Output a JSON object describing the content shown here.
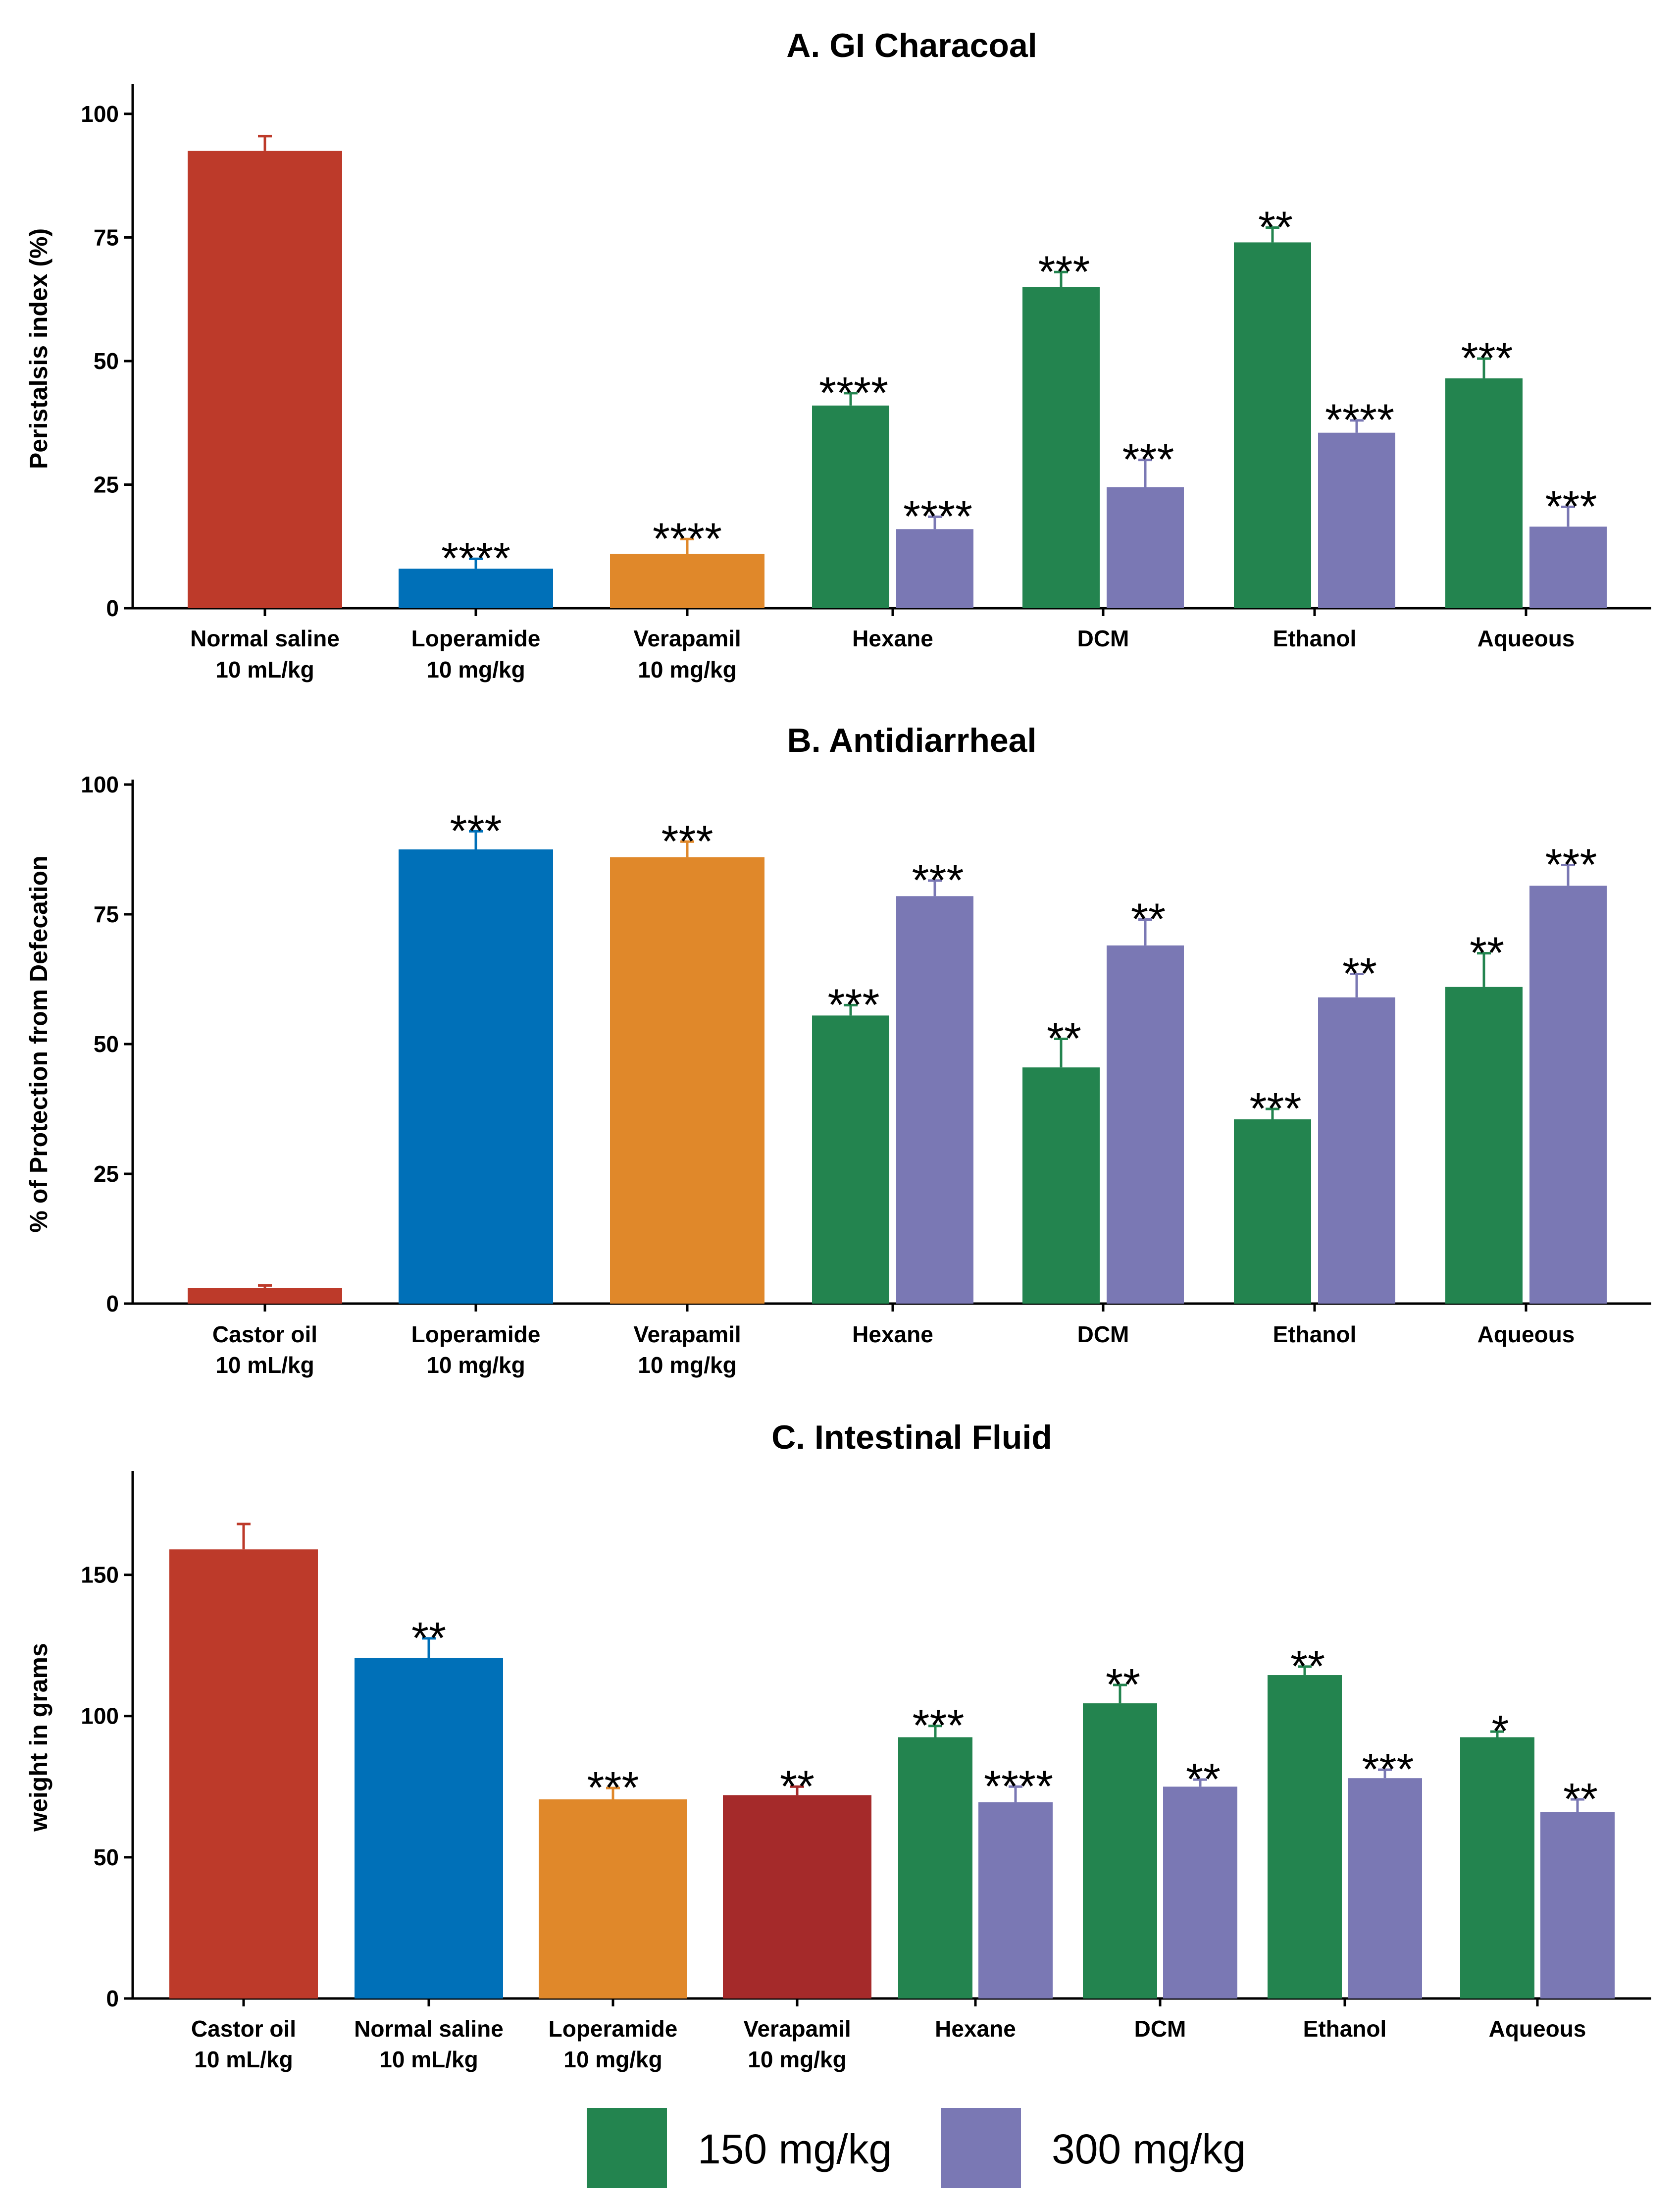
{
  "chart_data": [
    {
      "type": "bar",
      "title": "A. GI Characoal",
      "ylabel": "Peristalsis index (%)",
      "ylim": [
        0,
        105
      ],
      "yticks": [
        0,
        25,
        50,
        75,
        100
      ],
      "groups": [
        {
          "label": [
            "Normal saline",
            "10 mL/kg"
          ],
          "bars": [
            {
              "kind": "control",
              "color": "#bd3a2a",
              "value": 92.5,
              "error": 3.0,
              "sig": ""
            }
          ]
        },
        {
          "label": [
            "Loperamide",
            "10 mg/kg"
          ],
          "bars": [
            {
              "kind": "control",
              "color": "#0070b8",
              "value": 8.0,
              "error": 2.0,
              "sig": "****"
            }
          ]
        },
        {
          "label": [
            "Verapamil",
            "10 mg/kg"
          ],
          "bars": [
            {
              "kind": "control",
              "color": "#e0882a",
              "value": 11.0,
              "error": 3.0,
              "sig": "****"
            }
          ]
        },
        {
          "label": [
            "Hexane"
          ],
          "bars": [
            {
              "kind": "150",
              "value": 41.0,
              "error": 2.5,
              "sig": "****"
            },
            {
              "kind": "300",
              "value": 16.0,
              "error": 2.5,
              "sig": "****"
            }
          ]
        },
        {
          "label": [
            "DCM"
          ],
          "bars": [
            {
              "kind": "150",
              "value": 65.0,
              "error": 3.0,
              "sig": "***"
            },
            {
              "kind": "300",
              "value": 24.5,
              "error": 5.5,
              "sig": "***"
            }
          ]
        },
        {
          "label": [
            "Ethanol"
          ],
          "bars": [
            {
              "kind": "150",
              "value": 74.0,
              "error": 3.0,
              "sig": "**"
            },
            {
              "kind": "300",
              "value": 35.5,
              "error": 2.5,
              "sig": "****"
            }
          ]
        },
        {
          "label": [
            "Aqueous"
          ],
          "bars": [
            {
              "kind": "150",
              "value": 46.5,
              "error": 4.0,
              "sig": "***"
            },
            {
              "kind": "300",
              "value": 16.5,
              "error": 4.0,
              "sig": "***"
            }
          ]
        }
      ]
    },
    {
      "type": "bar",
      "title": "B. Antidiarrheal",
      "ylabel": "% of Protection from Defecation",
      "ylim": [
        0,
        100
      ],
      "yticks": [
        0,
        25,
        50,
        75,
        100
      ],
      "groups": [
        {
          "label": [
            "Castor oil",
            "10 mL/kg"
          ],
          "bars": [
            {
              "kind": "control",
              "color": "#bd3a2a",
              "value": 3.0,
              "error": 0.5,
              "sig": ""
            }
          ]
        },
        {
          "label": [
            "Loperamide",
            "10 mg/kg"
          ],
          "bars": [
            {
              "kind": "control",
              "color": "#0070b8",
              "value": 87.5,
              "error": 3.5,
              "sig": "***"
            }
          ]
        },
        {
          "label": [
            "Verapamil",
            "10 mg/kg"
          ],
          "bars": [
            {
              "kind": "control",
              "color": "#e0882a",
              "value": 86.0,
              "error": 3.0,
              "sig": "***"
            }
          ]
        },
        {
          "label": [
            "Hexane"
          ],
          "bars": [
            {
              "kind": "150",
              "value": 55.5,
              "error": 2.0,
              "sig": "***"
            },
            {
              "kind": "300",
              "value": 78.5,
              "error": 3.0,
              "sig": "***"
            }
          ]
        },
        {
          "label": [
            "DCM"
          ],
          "bars": [
            {
              "kind": "150",
              "value": 45.5,
              "error": 5.5,
              "sig": "**"
            },
            {
              "kind": "300",
              "value": 69.0,
              "error": 5.0,
              "sig": "**"
            }
          ]
        },
        {
          "label": [
            "Ethanol"
          ],
          "bars": [
            {
              "kind": "150",
              "value": 35.5,
              "error": 2.0,
              "sig": "***"
            },
            {
              "kind": "300",
              "value": 59.0,
              "error": 4.5,
              "sig": "**"
            }
          ]
        },
        {
          "label": [
            "Aqueous"
          ],
          "bars": [
            {
              "kind": "150",
              "value": 61.0,
              "error": 6.5,
              "sig": "**"
            },
            {
              "kind": "300",
              "value": 80.5,
              "error": 4.0,
              "sig": "***"
            }
          ]
        }
      ]
    },
    {
      "type": "bar",
      "title": "C. Intestinal Fluid",
      "ylabel": "weight in grams",
      "ylim": [
        0,
        185
      ],
      "yticks": [
        0,
        50,
        100,
        150
      ],
      "groups": [
        {
          "label": [
            "Castor oil",
            "10 mL/kg"
          ],
          "bars": [
            {
              "kind": "control",
              "color": "#bd3a2a",
              "value": 159.0,
              "error": 9.0,
              "sig": ""
            }
          ]
        },
        {
          "label": [
            "Normal saline",
            "10 mL/kg"
          ],
          "bars": [
            {
              "kind": "control",
              "color": "#0070b8",
              "value": 120.5,
              "error": 7.0,
              "sig": "**"
            }
          ]
        },
        {
          "label": [
            "Loperamide",
            "10 mg/kg"
          ],
          "bars": [
            {
              "kind": "control",
              "color": "#e0882a",
              "value": 70.5,
              "error": 4.0,
              "sig": "***"
            }
          ]
        },
        {
          "label": [
            "Verapamil",
            "10 mg/kg"
          ],
          "bars": [
            {
              "kind": "control",
              "color": "#a52a2a",
              "value": 72.0,
              "error": 3.0,
              "sig": "**"
            }
          ]
        },
        {
          "label": [
            "Hexane"
          ],
          "bars": [
            {
              "kind": "150",
              "value": 92.5,
              "error": 4.0,
              "sig": "***"
            },
            {
              "kind": "300",
              "value": 69.5,
              "error": 5.5,
              "sig": "****"
            }
          ]
        },
        {
          "label": [
            "DCM"
          ],
          "bars": [
            {
              "kind": "150",
              "value": 104.5,
              "error": 6.5,
              "sig": "**"
            },
            {
              "kind": "300",
              "value": 75.0,
              "error": 2.5,
              "sig": "**"
            }
          ]
        },
        {
          "label": [
            "Ethanol"
          ],
          "bars": [
            {
              "kind": "150",
              "value": 114.5,
              "error": 3.0,
              "sig": "**"
            },
            {
              "kind": "300",
              "value": 78.0,
              "error": 3.0,
              "sig": "***"
            }
          ]
        },
        {
          "label": [
            "Aqueous"
          ],
          "bars": [
            {
              "kind": "150",
              "value": 92.5,
              "error": 2.0,
              "sig": "*"
            },
            {
              "kind": "300",
              "value": 66.0,
              "error": 4.5,
              "sig": "**"
            }
          ]
        }
      ]
    }
  ],
  "legend": {
    "position": "bottom-center",
    "items": [
      {
        "key": "150",
        "label": "150 mg/kg",
        "color": "#23844f"
      },
      {
        "key": "300",
        "label": "300 mg/kg",
        "color": "#7a78b4"
      }
    ]
  }
}
